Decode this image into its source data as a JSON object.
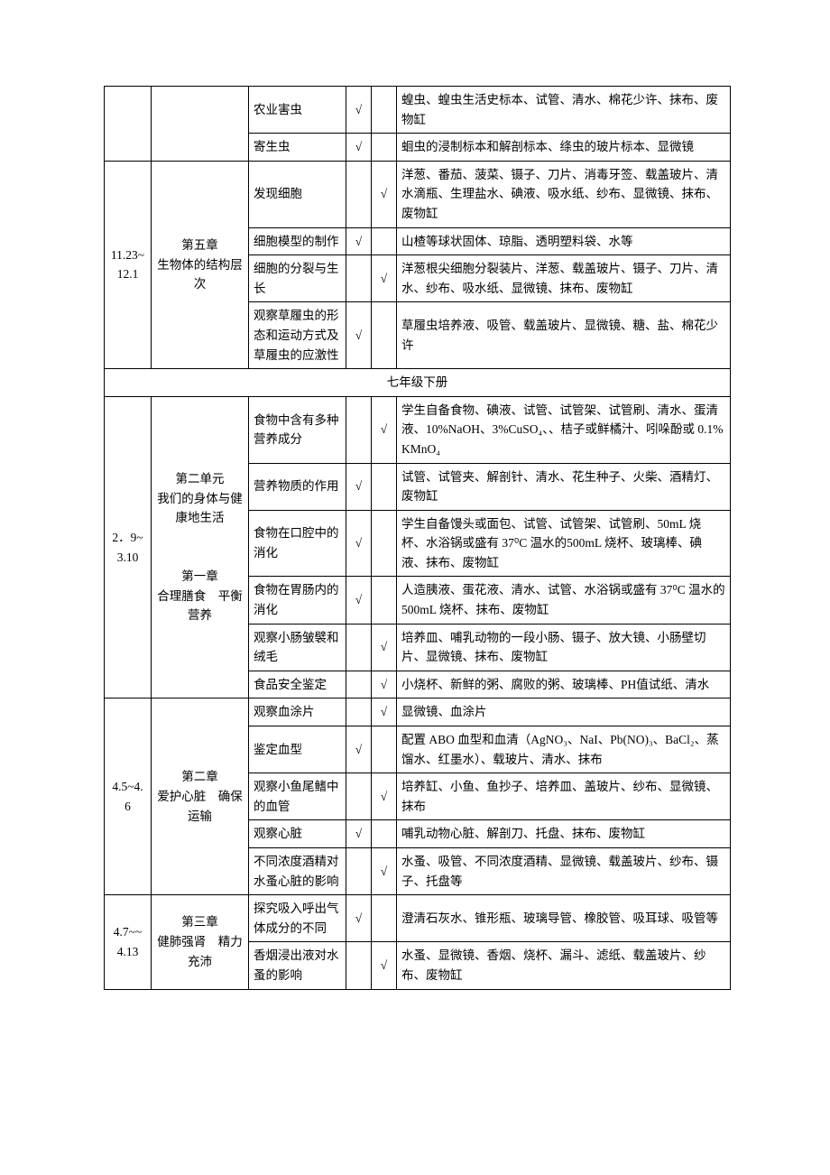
{
  "checkmark": "√",
  "part1": {
    "rows": [
      {
        "exp": "农业害虫",
        "c1": true,
        "c2": false,
        "mat": "蝗虫、蝗虫生活史标本、试管、清水、棉花少许、抹布、废物缸"
      },
      {
        "exp": "寄生虫",
        "c1": true,
        "c2": false,
        "mat": "蛔虫的浸制标本和解剖标本、绦虫的玻片标本、显微镜"
      }
    ]
  },
  "part2": {
    "date": "11.23~12.1",
    "chapter": "第五章\n生物体的结构层次",
    "rows": [
      {
        "exp": "发现细胞",
        "c1": false,
        "c2": true,
        "mat": "洋葱、番茄、菠菜、镊子、刀片、消毒牙签、载盖玻片、清水滴瓶、生理盐水、碘液、吸水纸、纱布、显微镜、抹布、废物缸"
      },
      {
        "exp": "细胞模型的制作",
        "c1": true,
        "c2": false,
        "mat": "山楂等球状固体、琼脂、透明塑料袋、水等"
      },
      {
        "exp": "细胞的分裂与生长",
        "c1": false,
        "c2": true,
        "mat": "洋葱根尖细胞分裂装片、洋葱、载盖玻片、镊子、刀片、清水、纱布、吸水纸、显微镜、抹布、废物缸"
      },
      {
        "exp": "观察草履虫的形态和运动方式及草履虫的应激性",
        "c1": true,
        "c2": false,
        "mat": "草履虫培养液、吸管、载盖玻片、显微镜、糖、盐、棉花少许"
      }
    ]
  },
  "sectionHeader": "七年级下册",
  "part3": {
    "date": "2．9~3.10",
    "chapter": "第二单元\n我们的身体与健康地生活\n\n\n第一章\n合理膳食　平衡营养",
    "rows": [
      {
        "exp": "食物中含有多种营养成分",
        "c1": false,
        "c2": true,
        "mat": "学生自备食物、碘液、试管、试管架、试管刷、清水、蛋清液、10%NaOH、3%CuSO₄、、桔子或鲜橘汁、吲哚酚或 0.1%KMnO₄"
      },
      {
        "exp": "营养物质的作用",
        "c1": true,
        "c2": false,
        "mat": "试管、试管夹、解剖针、清水、花生种子、火柴、酒精灯、废物缸"
      },
      {
        "exp": "食物在口腔中的消化",
        "c1": true,
        "c2": false,
        "mat": "学生自备馒头或面包、试管、试管架、试管刷、50mL 烧杯、水浴锅或盛有 37⁰C 温水的500mL 烧杯、玻璃棒、碘液、抹布、废物缸"
      },
      {
        "exp": "食物在胃肠内的消化",
        "c1": true,
        "c2": false,
        "mat": "人造胰液、蛋花液、清水、试管、水浴锅或盛有 37⁰C 温水的 500mL 烧杯、抹布、废物缸"
      },
      {
        "exp": "观察小肠皱襞和绒毛",
        "c1": false,
        "c2": true,
        "mat": "培养皿、哺乳动物的一段小肠、镊子、放大镜、小肠壁切片、显微镜、抹布、废物缸"
      },
      {
        "exp": "食品安全鉴定",
        "c1": false,
        "c2": true,
        "mat": "小烧杯、新鲜的粥、腐败的粥、玻璃棒、PH值试纸、清水"
      }
    ]
  },
  "part4": {
    "date": "4.5~4.6",
    "chapter": "第二章\n爱护心脏　确保运输",
    "rows": [
      {
        "exp": "观察血涂片",
        "c1": false,
        "c2": true,
        "mat": "显微镜、血涂片"
      },
      {
        "exp": "鉴定血型",
        "c1": true,
        "c2": false,
        "mat": "配置 ABO 血型和血清（AgNO₃、NaI、Pb(NO)₃、BaCl₂、蒸馏水、红墨水）、载玻片、清水、抹布"
      },
      {
        "exp": "观察小鱼尾鳍中的血管",
        "c1": false,
        "c2": true,
        "mat": "培养缸、小鱼、鱼抄子、培养皿、盖玻片、纱布、显微镜、抹布"
      },
      {
        "exp": "观察心脏",
        "c1": true,
        "c2": false,
        "mat": "哺乳动物心脏、解剖刀、托盘、抹布、废物缸"
      },
      {
        "exp": "不同浓度酒精对水蚤心脏的影响",
        "c1": false,
        "c2": true,
        "mat": "水蚤、吸管、不同浓度酒精、显微镜、载盖玻片、纱布、镊子、托盘等"
      }
    ]
  },
  "part5": {
    "date": "4.7~~4.13",
    "chapter": "第三章\n健肺强肾　精力充沛",
    "rows": [
      {
        "exp": "探究吸入呼出气体成分的不同",
        "c1": true,
        "c2": false,
        "mat": "澄清石灰水、锥形瓶、玻璃导管、橡胶管、吸耳球、吸管等"
      },
      {
        "exp": "香烟浸出液对水蚤的影响",
        "c1": false,
        "c2": true,
        "mat": "水蚤、显微镜、香烟、烧杯、漏斗、滤纸、载盖玻片、纱布、废物缸"
      }
    ]
  }
}
